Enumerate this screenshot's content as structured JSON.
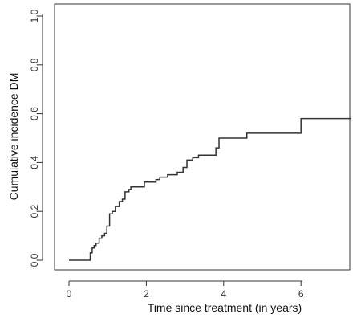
{
  "chart_data": {
    "type": "line",
    "step": true,
    "title": "",
    "xlabel": "Time since treatment (in years)",
    "ylabel": "Cumulative incidence DM",
    "xlim": [
      0,
      7.3
    ],
    "ylim": [
      0,
      1.0
    ],
    "xticks": [
      0,
      2,
      4,
      6
    ],
    "yticks": [
      0.0,
      0.2,
      0.4,
      0.6,
      0.8,
      1.0
    ],
    "xtick_labels": [
      "0",
      "2",
      "4",
      "6"
    ],
    "ytick_labels": [
      "0.0",
      "0.2",
      "0.4",
      "0.6",
      "0.8",
      "1.0"
    ],
    "grid": false,
    "series": [
      {
        "x": [
          0,
          0.55,
          0.6,
          0.65,
          0.7,
          0.78,
          0.85,
          0.92,
          0.98,
          1.05,
          1.12,
          1.2,
          1.3,
          1.38,
          1.45,
          1.55,
          1.6,
          1.72,
          1.95,
          2.25,
          2.35,
          2.55,
          2.8,
          2.95,
          3.05,
          3.2,
          3.35,
          3.8,
          3.88,
          4.6,
          6.0,
          7.3
        ],
        "y": [
          0.0,
          0.03,
          0.05,
          0.06,
          0.07,
          0.09,
          0.1,
          0.11,
          0.14,
          0.19,
          0.2,
          0.22,
          0.24,
          0.25,
          0.28,
          0.29,
          0.3,
          0.3,
          0.32,
          0.33,
          0.34,
          0.35,
          0.36,
          0.38,
          0.41,
          0.42,
          0.43,
          0.46,
          0.5,
          0.52,
          0.58,
          0.58
        ]
      }
    ]
  }
}
